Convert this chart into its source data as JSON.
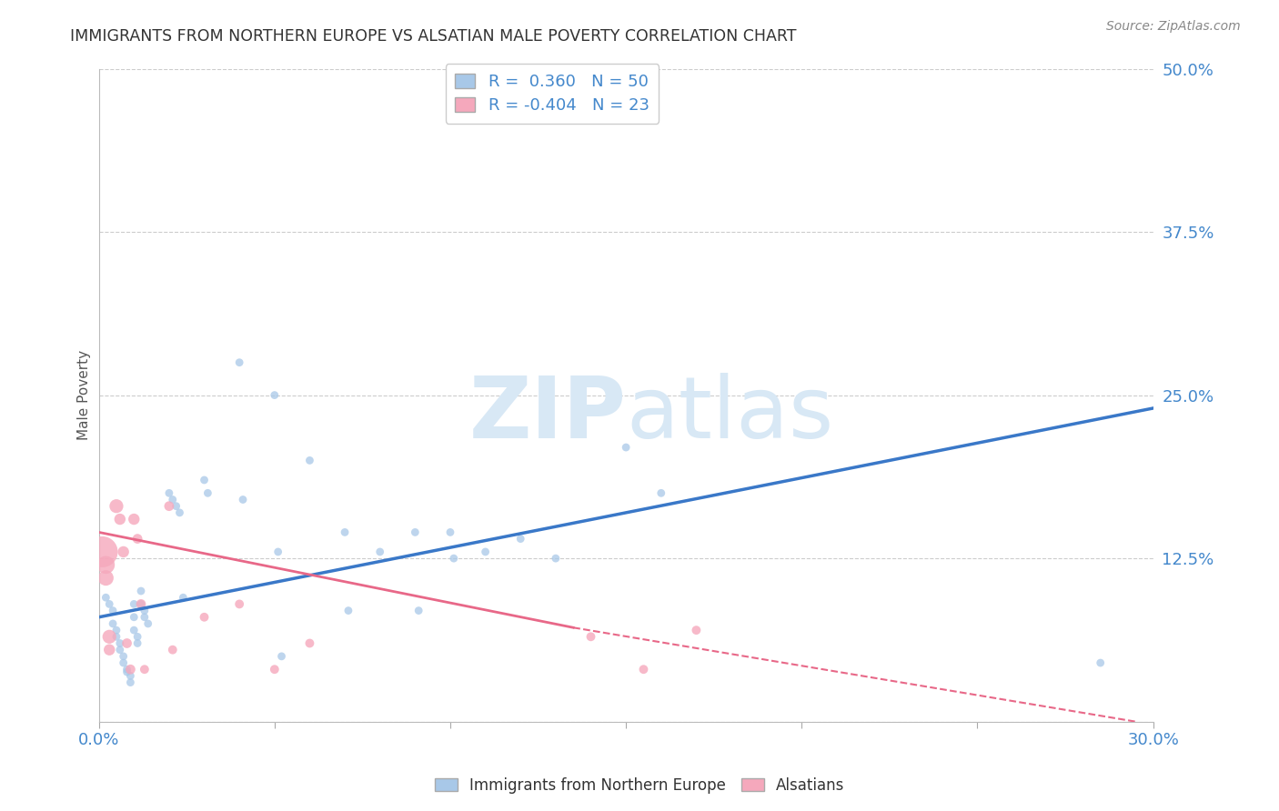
{
  "title": "IMMIGRANTS FROM NORTHERN EUROPE VS ALSATIAN MALE POVERTY CORRELATION CHART",
  "source": "Source: ZipAtlas.com",
  "ylabel": "Male Poverty",
  "legend_labels": [
    "Immigrants from Northern Europe",
    "Alsatians"
  ],
  "r_blue": 0.36,
  "r_pink": -0.404,
  "n_blue": 50,
  "n_pink": 23,
  "xlim": [
    0.0,
    0.3
  ],
  "ylim": [
    0.0,
    0.5
  ],
  "blue_color": "#A8C8E8",
  "pink_color": "#F5A8BC",
  "blue_line_color": "#3A78C8",
  "pink_line_color": "#E86888",
  "watermark_color": "#D8E8F5",
  "blue_scatter_x": [
    0.002,
    0.003,
    0.004,
    0.004,
    0.005,
    0.005,
    0.006,
    0.006,
    0.007,
    0.007,
    0.008,
    0.008,
    0.009,
    0.009,
    0.01,
    0.01,
    0.01,
    0.011,
    0.011,
    0.012,
    0.012,
    0.013,
    0.013,
    0.014,
    0.02,
    0.021,
    0.022,
    0.023,
    0.024,
    0.03,
    0.031,
    0.04,
    0.041,
    0.05,
    0.051,
    0.052,
    0.06,
    0.07,
    0.071,
    0.08,
    0.09,
    0.091,
    0.1,
    0.101,
    0.11,
    0.12,
    0.13,
    0.15,
    0.16,
    0.285
  ],
  "blue_scatter_y": [
    0.095,
    0.09,
    0.085,
    0.075,
    0.07,
    0.065,
    0.06,
    0.055,
    0.05,
    0.045,
    0.04,
    0.038,
    0.035,
    0.03,
    0.09,
    0.08,
    0.07,
    0.065,
    0.06,
    0.1,
    0.09,
    0.085,
    0.08,
    0.075,
    0.175,
    0.17,
    0.165,
    0.16,
    0.095,
    0.185,
    0.175,
    0.275,
    0.17,
    0.25,
    0.13,
    0.05,
    0.2,
    0.145,
    0.085,
    0.13,
    0.145,
    0.085,
    0.145,
    0.125,
    0.13,
    0.14,
    0.125,
    0.21,
    0.175,
    0.045
  ],
  "blue_scatter_size": [
    40,
    40,
    40,
    40,
    40,
    40,
    40,
    40,
    40,
    40,
    40,
    40,
    40,
    40,
    40,
    40,
    40,
    40,
    40,
    40,
    40,
    40,
    40,
    40,
    40,
    40,
    40,
    40,
    40,
    40,
    40,
    40,
    40,
    40,
    40,
    40,
    40,
    40,
    40,
    40,
    40,
    40,
    40,
    40,
    40,
    40,
    40,
    40,
    40,
    40
  ],
  "pink_scatter_x": [
    0.001,
    0.002,
    0.002,
    0.003,
    0.003,
    0.005,
    0.006,
    0.007,
    0.008,
    0.009,
    0.01,
    0.011,
    0.012,
    0.013,
    0.02,
    0.021,
    0.03,
    0.04,
    0.05,
    0.06,
    0.14,
    0.155,
    0.17
  ],
  "pink_scatter_y": [
    0.13,
    0.12,
    0.11,
    0.065,
    0.055,
    0.165,
    0.155,
    0.13,
    0.06,
    0.04,
    0.155,
    0.14,
    0.09,
    0.04,
    0.165,
    0.055,
    0.08,
    0.09,
    0.04,
    0.06,
    0.065,
    0.04,
    0.07
  ],
  "pink_scatter_size": [
    600,
    200,
    150,
    120,
    80,
    120,
    80,
    80,
    60,
    60,
    80,
    60,
    60,
    50,
    60,
    50,
    50,
    50,
    50,
    50,
    50,
    50,
    50
  ],
  "blue_line": {
    "x0": 0.0,
    "y0": 0.08,
    "x1": 0.3,
    "y1": 0.24
  },
  "pink_line_solid": {
    "x0": 0.0,
    "y0": 0.145,
    "x1": 0.135,
    "y1": 0.072
  },
  "pink_line_dash": {
    "x0": 0.135,
    "y0": 0.072,
    "x1": 0.295,
    "y1": 0.0
  }
}
